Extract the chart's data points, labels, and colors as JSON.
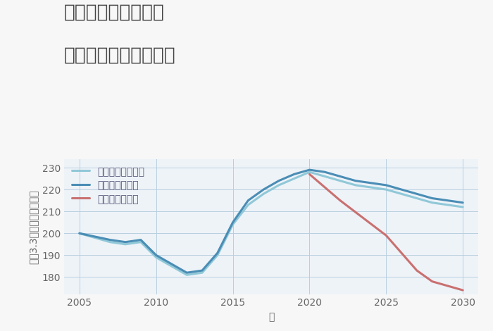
{
  "title_line1": "東京都江東区新砂の",
  "title_line2": "中古戸建ての価格推移",
  "xlabel": "年",
  "ylabel": "坪（3.3㎡）単価（万円）",
  "background_color": "#f7f7f7",
  "plot_background": "#eef3f8",
  "good_scenario": {
    "label": "グッドシナリオ",
    "color": "#4a8db5",
    "years": [
      2005,
      2007,
      2008,
      2009,
      2010,
      2011,
      2012,
      2013,
      2014,
      2015,
      2016,
      2017,
      2018,
      2019,
      2020,
      2021,
      2022,
      2023,
      2024,
      2025,
      2026,
      2027,
      2028,
      2029,
      2030
    ],
    "values": [
      200,
      197,
      196,
      197,
      190,
      186,
      182,
      183,
      191,
      205,
      215,
      220,
      224,
      227,
      229,
      228,
      226,
      224,
      223,
      222,
      220,
      218,
      216,
      215,
      214
    ]
  },
  "bad_scenario": {
    "label": "バッドシナリオ",
    "color": "#c97070",
    "years": [
      2020,
      2022,
      2025,
      2027,
      2028,
      2029,
      2030
    ],
    "values": [
      227,
      215,
      199,
      183,
      178,
      176,
      174
    ]
  },
  "normal_scenario": {
    "label": "ノーマルシナリオ",
    "color": "#90c8d8",
    "years": [
      2005,
      2007,
      2008,
      2009,
      2010,
      2011,
      2012,
      2013,
      2014,
      2015,
      2016,
      2017,
      2018,
      2019,
      2020,
      2021,
      2022,
      2023,
      2024,
      2025,
      2026,
      2027,
      2028,
      2029,
      2030
    ],
    "values": [
      200,
      196,
      195,
      196,
      189,
      185,
      181,
      182,
      190,
      204,
      213,
      218,
      222,
      225,
      228,
      226,
      224,
      222,
      221,
      220,
      218,
      216,
      214,
      213,
      212
    ]
  },
  "ylim": [
    172,
    234
  ],
  "xlim": [
    2004,
    2031
  ],
  "yticks": [
    180,
    190,
    200,
    210,
    220,
    230
  ],
  "xticks": [
    2005,
    2010,
    2015,
    2020,
    2025,
    2030
  ],
  "title_fontsize": 19,
  "axis_label_fontsize": 10,
  "tick_fontsize": 10,
  "legend_fontsize": 10,
  "line_width": 2.2
}
